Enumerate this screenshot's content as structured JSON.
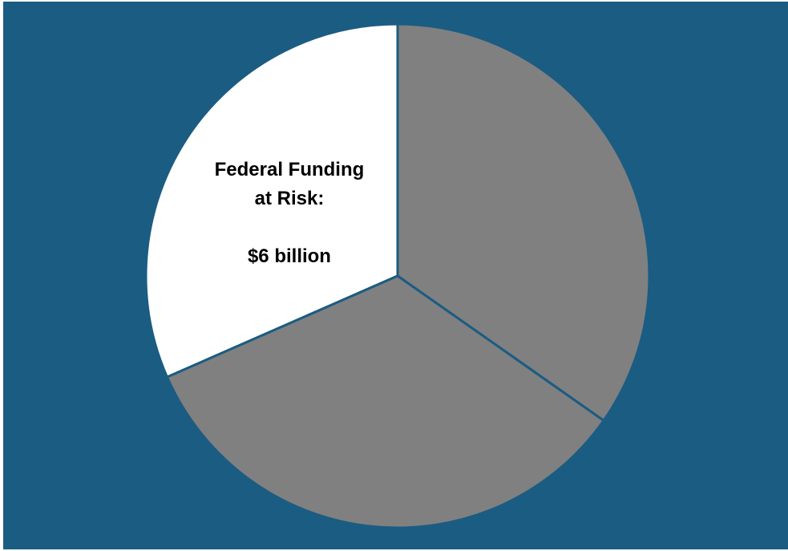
{
  "chart_data": {
    "type": "pie",
    "slices": [
      {
        "value": 6,
        "color": "#ffffff",
        "label_lines": [
          "Federal Funding",
          "at Risk:",
          "",
          "$6 billion"
        ]
      },
      {
        "value": 6.6,
        "color": "#808080",
        "label_lines": []
      },
      {
        "value": 6.4,
        "color": "#808080",
        "label_lines": []
      }
    ],
    "start_angle_deg": 0,
    "direction": "counterclockwise-first",
    "background": "#1b5c82",
    "separator_color": "#1b5c82",
    "legend": "none"
  }
}
